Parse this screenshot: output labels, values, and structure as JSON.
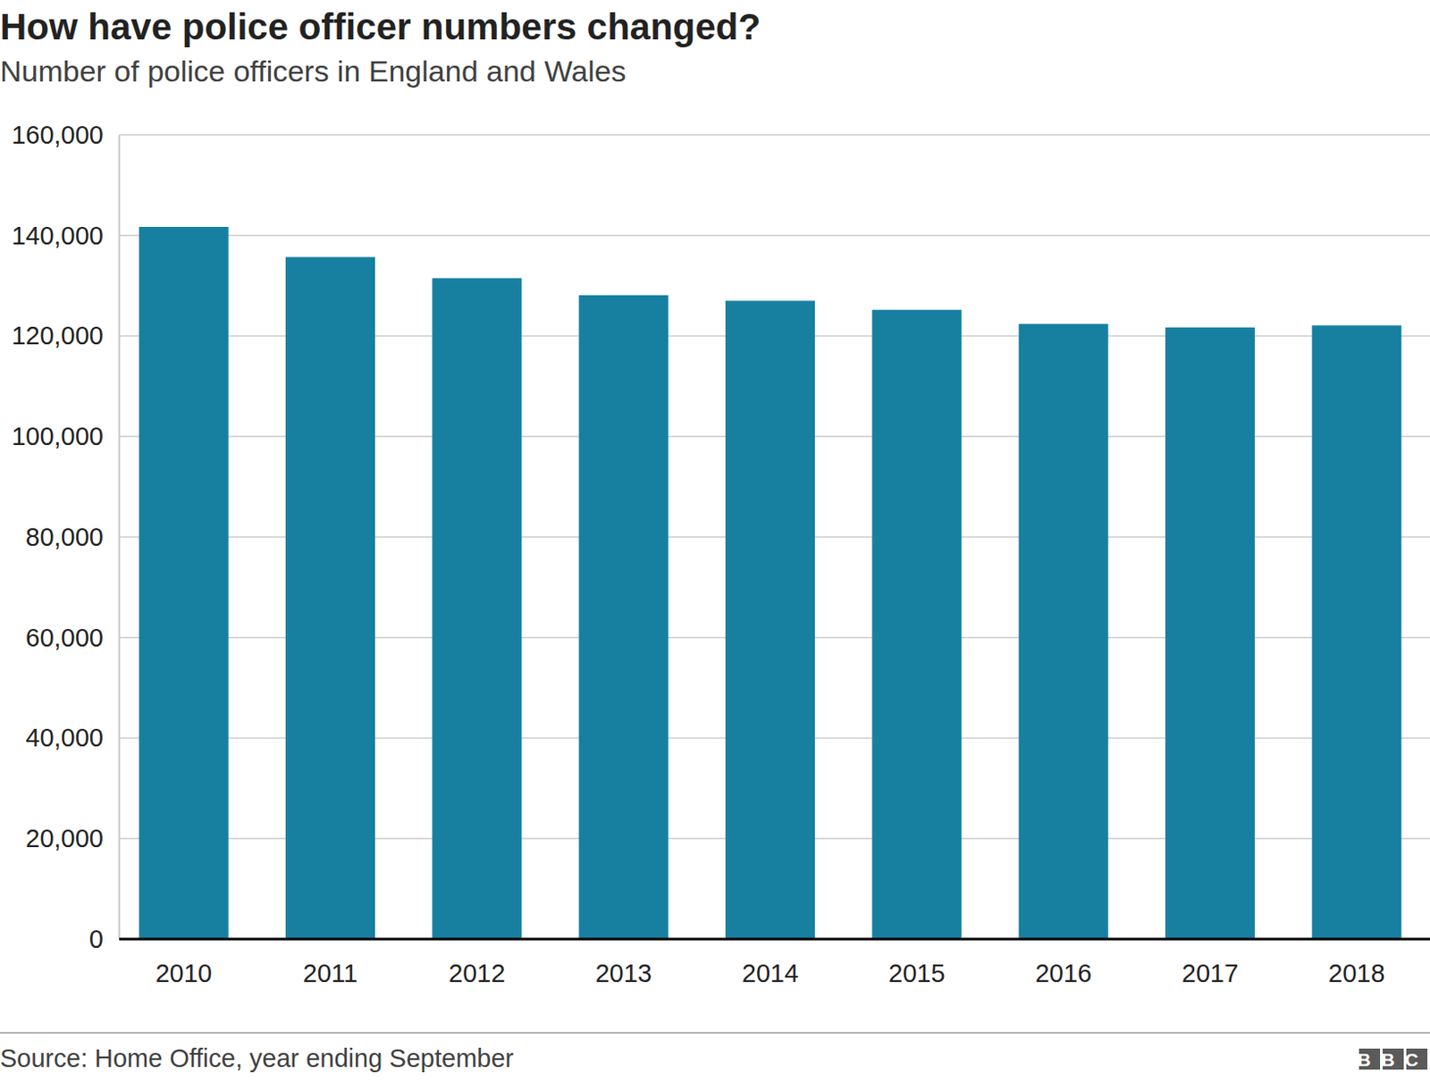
{
  "chart_data": {
    "type": "bar",
    "title": "How have police officer numbers changed?",
    "subtitle": "Number of police officers in England and Wales",
    "categories": [
      "2010",
      "2011",
      "2012",
      "2013",
      "2014",
      "2015",
      "2016",
      "2017",
      "2018"
    ],
    "values": [
      141700,
      135700,
      131500,
      128100,
      127000,
      125200,
      122400,
      121700,
      122100
    ],
    "color": "#1780a1",
    "ylim": [
      0,
      160000
    ],
    "yticks": [
      0,
      {
        "value": 20000,
        "label": "20,000"
      },
      {
        "value": 40000,
        "label": "40,000"
      },
      {
        "value": 60000,
        "label": "60,000"
      },
      {
        "value": 80000,
        "label": "80,000"
      },
      {
        "value": 100000,
        "label": "100,000"
      },
      {
        "value": 120000,
        "label": "120,000"
      },
      {
        "value": 140000,
        "label": "140,000"
      },
      {
        "value": 160000,
        "label": "160,000"
      }
    ],
    "grid": true,
    "source": "Source: Home Office, year ending September",
    "logo": "BBC"
  }
}
